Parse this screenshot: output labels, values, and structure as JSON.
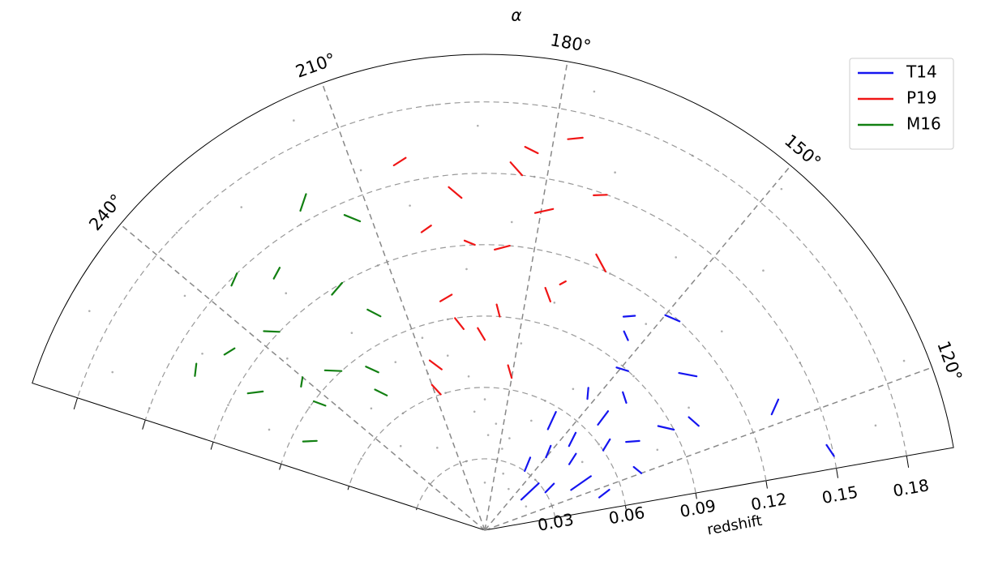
{
  "chart_data": {
    "type": "polar-wedge",
    "title": "α",
    "r_label": "redshift",
    "thetalim": [
      110,
      262
    ],
    "rlim": [
      0,
      0.2
    ],
    "thetaticks": [
      {
        "value": 120,
        "label": "120°"
      },
      {
        "value": 150,
        "label": "150°"
      },
      {
        "value": 180,
        "label": "180°"
      },
      {
        "value": 210,
        "label": "210°"
      },
      {
        "value": 240,
        "label": "240°"
      }
    ],
    "rticks": [
      0.03,
      0.06,
      0.09,
      0.12,
      0.15,
      0.18
    ],
    "grid": true,
    "legend": "upper right",
    "points": {
      "color": "#8c8c8c",
      "theta": [
        115,
        118,
        122,
        125,
        128,
        131,
        134,
        137,
        140,
        143,
        146,
        149,
        152,
        155,
        158,
        161,
        164,
        167,
        170,
        173,
        176,
        179,
        182,
        185,
        188,
        191,
        194,
        197,
        200,
        203,
        206,
        209,
        212,
        215,
        218,
        221,
        224,
        227,
        230,
        233,
        236,
        239,
        242,
        245,
        248,
        251,
        254,
        257,
        260,
        120,
        135,
        150,
        165,
        180,
        195,
        210,
        225,
        240,
        255,
        130,
        145,
        160,
        175,
        190,
        205,
        220,
        235,
        250,
        172,
        178,
        184,
        190,
        196,
        202,
        208
      ],
      "r": [
        0.17,
        0.12,
        0.19,
        0.08,
        0.15,
        0.1,
        0.18,
        0.06,
        0.13,
        0.16,
        0.09,
        0.19,
        0.11,
        0.14,
        0.07,
        0.18,
        0.12,
        0.05,
        0.16,
        0.1,
        0.19,
        0.08,
        0.15,
        0.13,
        0.04,
        0.17,
        0.11,
        0.18,
        0.09,
        0.14,
        0.06,
        0.16,
        0.12,
        0.19,
        0.08,
        0.15,
        0.1,
        0.17,
        0.13,
        0.07,
        0.18,
        0.11,
        0.16,
        0.09,
        0.14,
        0.19,
        0.12,
        0.17,
        0.15,
        0.03,
        0.05,
        0.04,
        0.06,
        0.03,
        0.05,
        0.07,
        0.06,
        0.08,
        0.1,
        0.02,
        0.03,
        0.02,
        0.04,
        0.02,
        0.03,
        0.04,
        0.05,
        0.06,
        0.025,
        0.035,
        0.045,
        0.055,
        0.065,
        0.075,
        0.085
      ]
    },
    "series": [
      {
        "name": "T14",
        "color": "#1515f0",
        "theta": [
          116,
          118,
          null,
          120,
          123,
          null,
          125,
          127,
          null,
          128,
          131,
          null,
          132,
          134,
          null,
          134,
          136,
          null,
          136,
          139,
          null,
          140,
          141,
          null,
          142,
          145,
          null,
          145,
          147,
          null,
          147,
          150,
          null,
          150,
          152,
          null,
          153,
          155,
          null,
          156,
          158,
          null,
          122,
          124,
          null,
          126,
          129,
          null,
          130,
          132,
          null,
          138,
          140,
          null,
          143,
          144,
          null,
          148,
          151,
          null,
          152,
          154,
          null,
          155,
          157,
          null,
          158,
          159,
          null,
          112,
          114
        ],
        "r": [
          0.05,
          0.055,
          null,
          0.07,
          0.068,
          null,
          0.04,
          0.05,
          null,
          0.09,
          0.085,
          null,
          0.03,
          0.035,
          null,
          0.06,
          0.065,
          null,
          0.11,
          0.105,
          null,
          0.02,
          0.03,
          null,
          0.08,
          0.082,
          null,
          0.05,
          0.056,
          null,
          0.12,
          0.118,
          null,
          0.04,
          0.045,
          null,
          0.1,
          0.102,
          null,
          0.03,
          0.036,
          null,
          0.13,
          0.135,
          null,
          0.1,
          0.098,
          null,
          0.075,
          0.07,
          null,
          0.045,
          0.05,
          null,
          0.065,
          0.072,
          null,
          0.09,
          0.088,
          null,
          0.07,
          0.074,
          null,
          0.11,
          0.107,
          null,
          0.05,
          0.058,
          null,
          0.15,
          0.148
        ]
      },
      {
        "name": "P19",
        "color": "#f01515",
        "theta": [
          165,
          168,
          null,
          170,
          172,
          null,
          174,
          176,
          null,
          178,
          181,
          null,
          182,
          184,
          null,
          185,
          188,
          null,
          190,
          192,
          null,
          194,
          196,
          null,
          198,
          201,
          null,
          202,
          204,
          null,
          205,
          208,
          null,
          176,
          178,
          null,
          180,
          182,
          null,
          186,
          187,
          null,
          192,
          194,
          null,
          200,
          202,
          null,
          208,
          210,
          null,
          172,
          173,
          null,
          184,
          186,
          null,
          196,
          198
        ],
        "r": [
          0.12,
          0.125,
          null,
          0.15,
          0.148,
          null,
          0.1,
          0.105,
          null,
          0.138,
          0.135,
          null,
          0.16,
          0.162,
          null,
          0.12,
          0.118,
          null,
          0.08,
          0.085,
          null,
          0.14,
          0.145,
          null,
          0.1,
          0.098,
          null,
          0.16,
          0.158,
          null,
          0.07,
          0.075,
          null,
          0.17,
          0.168,
          null,
          0.065,
          0.07,
          null,
          0.09,
          0.095,
          null,
          0.12,
          0.122,
          null,
          0.13,
          0.128,
          null,
          0.06,
          0.065,
          null,
          0.11,
          0.108,
          null,
          0.15,
          0.155,
          null,
          0.085,
          0.09
        ]
      },
      {
        "name": "M16",
        "color": "#128012",
        "theta": [
          212,
          214,
          null,
          216,
          218,
          null,
          220,
          223,
          null,
          224,
          226,
          null,
          228,
          230,
          null,
          232,
          235,
          null,
          236,
          238,
          null,
          240,
          242,
          null,
          244,
          246,
          null,
          248,
          250,
          null,
          252,
          254,
          null,
          218,
          220,
          null,
          226,
          228,
          null,
          234,
          236,
          null,
          242,
          243,
          null,
          250,
          252
        ],
        "r": [
          0.14,
          0.145,
          null,
          0.1,
          0.105,
          null,
          0.12,
          0.118,
          null,
          0.08,
          0.085,
          null,
          0.14,
          0.138,
          null,
          0.09,
          0.095,
          null,
          0.12,
          0.125,
          null,
          0.1,
          0.098,
          null,
          0.13,
          0.132,
          null,
          0.11,
          0.115,
          null,
          0.08,
          0.085,
          null,
          0.16,
          0.155,
          null,
          0.07,
          0.075,
          null,
          0.15,
          0.148,
          null,
          0.085,
          0.09,
          null,
          0.14,
          0.138
        ]
      }
    ]
  }
}
